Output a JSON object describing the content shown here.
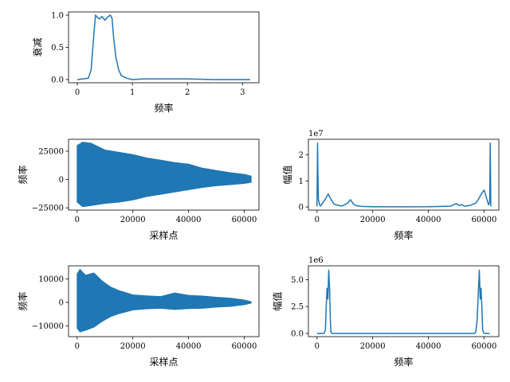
{
  "colors": {
    "series": "#1f77b4",
    "axes": "#000000",
    "background": "#ffffff"
  },
  "chart_data": [
    {
      "id": "filter_response",
      "type": "line",
      "xlabel": "频率",
      "ylabel": "衰减",
      "xlim": [
        -0.16,
        3.3
      ],
      "ylim": [
        -0.05,
        1.05
      ],
      "xticks": [
        0,
        1,
        2,
        3
      ],
      "xtick_labels": [
        "0",
        "1",
        "2",
        "3"
      ],
      "yticks": [
        0.0,
        0.5,
        1.0
      ],
      "ytick_labels": [
        "0.0",
        "0.5",
        "1.0"
      ],
      "offset_label": "",
      "series": [
        {
          "x": [
            0,
            0.1,
            0.2,
            0.25,
            0.3,
            0.33,
            0.36,
            0.4,
            0.45,
            0.5,
            0.55,
            0.6,
            0.63,
            0.66,
            0.7,
            0.75,
            0.8,
            0.9,
            1.0,
            1.2,
            1.5,
            2.0,
            2.5,
            3.0,
            3.14
          ],
          "y": [
            0.0,
            0.01,
            0.02,
            0.15,
            0.7,
            1.0,
            0.97,
            0.94,
            0.98,
            0.92,
            0.97,
            1.0,
            0.95,
            0.65,
            0.35,
            0.15,
            0.06,
            0.02,
            0.0,
            0.01,
            0.01,
            0.01,
            0.0,
            0.0,
            0.0
          ]
        }
      ]
    },
    {
      "id": "time_signal",
      "type": "line",
      "xlabel": "采样点",
      "ylabel": "频率",
      "xlim": [
        -3100,
        65300
      ],
      "ylim": [
        -27000,
        35500
      ],
      "xticks": [
        0,
        20000,
        40000,
        60000
      ],
      "xtick_labels": [
        "0",
        "20000",
        "40000",
        "60000"
      ],
      "yticks": [
        -25000,
        0,
        25000
      ],
      "ytick_labels": [
        "−25000",
        "0",
        "25000"
      ],
      "offset_label": "",
      "envelope": {
        "x": [
          0,
          2000,
          5000,
          10000,
          15000,
          20000,
          25000,
          30000,
          35000,
          40000,
          45000,
          50000,
          55000,
          60000,
          62500
        ],
        "upper": [
          30000,
          33000,
          32000,
          26000,
          24000,
          22000,
          19000,
          17000,
          15000,
          13500,
          10000,
          8000,
          6000,
          4500,
          3000
        ],
        "lower": [
          -20000,
          -24000,
          -23000,
          -21000,
          -20000,
          -18000,
          -15000,
          -13000,
          -11000,
          -9000,
          -7000,
          -5500,
          -4500,
          -3500,
          -2500
        ]
      }
    },
    {
      "id": "time_spectrum",
      "type": "line",
      "xlabel": "频率",
      "ylabel": "幅值",
      "xlim": [
        -3100,
        65300
      ],
      "ylim": [
        -1200000,
        26000000
      ],
      "xticks": [
        0,
        20000,
        40000,
        60000
      ],
      "xtick_labels": [
        "0",
        "20000",
        "40000",
        "60000"
      ],
      "yticks": [
        0,
        10000000,
        20000000
      ],
      "ytick_labels": [
        "0",
        "1",
        "2"
      ],
      "offset_label": "1e7",
      "series": [
        {
          "x": [
            0,
            200,
            300,
            500,
            900,
            1300,
            2000,
            3000,
            4000,
            5000,
            6000,
            7000,
            8000,
            9000,
            10000,
            11000,
            12000,
            13000,
            14000,
            16000,
            20000,
            30000,
            40000,
            48000,
            50000,
            51000,
            52000,
            53000,
            55000,
            57000,
            58000,
            59000,
            60000,
            61000,
            61600,
            62000,
            62200,
            62400
          ],
          "y": [
            200000,
            24500000,
            14000000,
            3000000,
            800000,
            400000,
            1500000,
            3000000,
            5000000,
            3000000,
            1200000,
            800000,
            500000,
            400000,
            900000,
            1500000,
            2800000,
            1200000,
            500000,
            200000,
            100000,
            50000,
            80000,
            300000,
            1300000,
            600000,
            900000,
            300000,
            600000,
            1500000,
            3000000,
            5000000,
            6500000,
            3000000,
            800000,
            2000000,
            24500000,
            200000
          ]
        }
      ]
    },
    {
      "id": "filtered_signal",
      "type": "line",
      "xlabel": "采样点",
      "ylabel": "频率",
      "xlim": [
        -3100,
        65300
      ],
      "ylim": [
        -14500,
        15500
      ],
      "xticks": [
        0,
        20000,
        40000,
        60000
      ],
      "xtick_labels": [
        "0",
        "20000",
        "40000",
        "60000"
      ],
      "yticks": [
        -10000,
        0,
        10000
      ],
      "ytick_labels": [
        "−10000",
        "0",
        "10000"
      ],
      "offset_label": "",
      "envelope": {
        "x": [
          0,
          1000,
          3000,
          6000,
          9000,
          12000,
          15000,
          20000,
          25000,
          30000,
          35000,
          40000,
          45000,
          50000,
          55000,
          60000,
          62500
        ],
        "upper": [
          12000,
          14000,
          11500,
          12500,
          9000,
          6500,
          5000,
          3200,
          2800,
          2500,
          4000,
          3000,
          2700,
          2200,
          1800,
          1000,
          300
        ],
        "lower": [
          -11000,
          -12500,
          -11800,
          -10500,
          -8000,
          -6000,
          -4800,
          -3200,
          -2700,
          -2500,
          -3000,
          -2600,
          -2500,
          -2000,
          -1700,
          -1000,
          -300
        ]
      }
    },
    {
      "id": "filtered_spectrum",
      "type": "line",
      "xlabel": "频率",
      "ylabel": "幅值",
      "xlim": [
        -3100,
        65300
      ],
      "ylim": [
        -300000,
        6300000
      ],
      "xticks": [
        0,
        20000,
        40000,
        60000
      ],
      "xtick_labels": [
        "0",
        "20000",
        "40000",
        "60000"
      ],
      "yticks": [
        0,
        2500000,
        5000000
      ],
      "ytick_labels": [
        "0.0",
        "2.5",
        "5.0"
      ],
      "offset_label": "1e6",
      "series": [
        {
          "x": [
            0,
            1500,
            2500,
            3000,
            3300,
            3600,
            3900,
            4200,
            4500,
            4800,
            5000,
            5500,
            10000,
            20000,
            30000,
            40000,
            50000,
            56500,
            57000,
            57500,
            58000,
            58300,
            58600,
            58900,
            59200,
            59500,
            60000,
            61000,
            62000
          ],
          "y": [
            0,
            0,
            0,
            300000,
            2500000,
            4200000,
            3200000,
            5900000,
            4200000,
            1200000,
            100000,
            0,
            0,
            0,
            0,
            0,
            0,
            0,
            100000,
            1200000,
            4200000,
            5900000,
            3200000,
            4200000,
            2500000,
            300000,
            0,
            0,
            0
          ]
        }
      ]
    }
  ]
}
